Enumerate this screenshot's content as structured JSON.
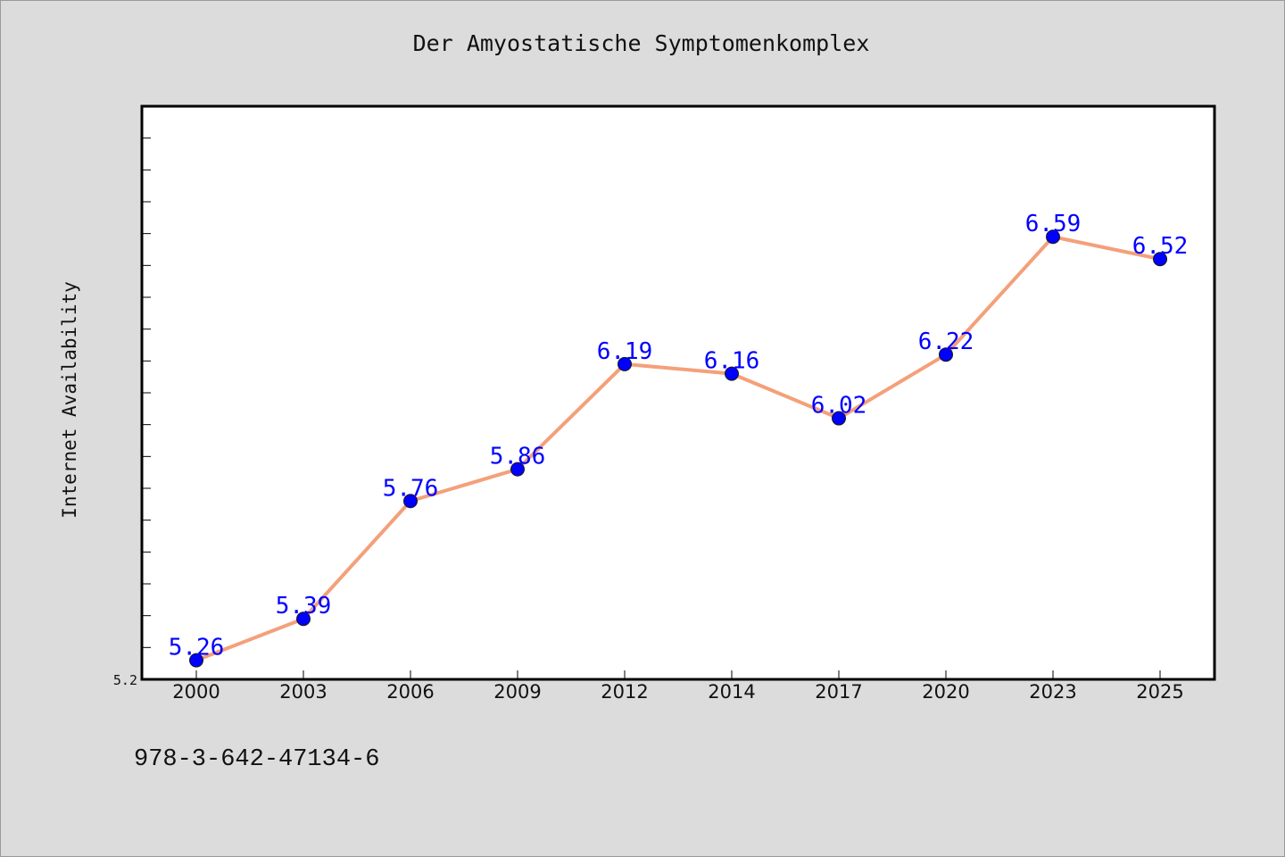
{
  "chart_data": {
    "type": "line",
    "title": "Der Amyostatische Symptomenkomplex",
    "xlabel": "",
    "ylabel": "Internet Availability",
    "categories": [
      "2000",
      "2003",
      "2006",
      "2009",
      "2012",
      "2014",
      "2017",
      "2020",
      "2023",
      "2025"
    ],
    "series": [
      {
        "values": [
          5.26,
          5.39,
          5.76,
          5.86,
          6.19,
          6.16,
          6.02,
          6.22,
          6.59,
          6.52
        ]
      }
    ],
    "ylim": [
      5.2,
      7.0
    ],
    "ytick_labels": [
      "5.2"
    ],
    "grid": false,
    "legend": "none",
    "colors": {
      "line": "#f4a07a",
      "marker": "#0000ff",
      "data_label": "#0000ff",
      "background": "#dcdcdc",
      "plot_background": "#ffffff"
    }
  },
  "footer_text": "978-3-642-47134-6"
}
